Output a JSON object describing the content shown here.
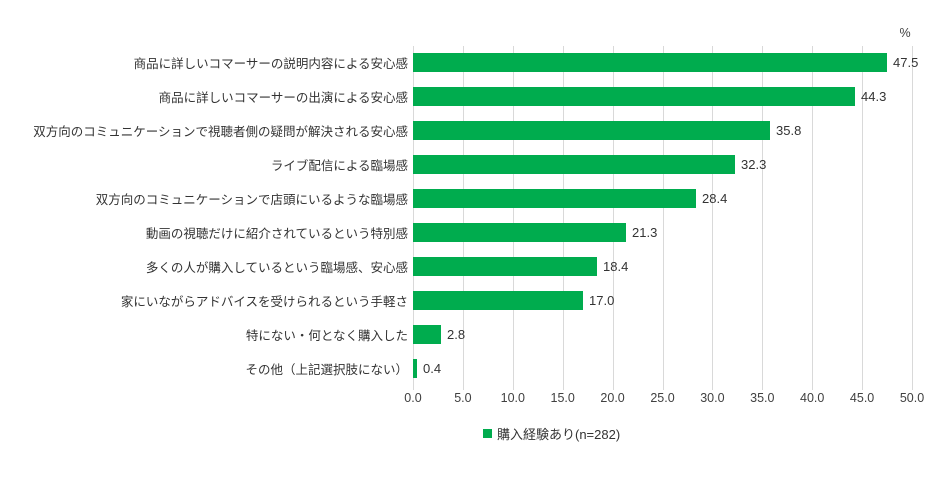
{
  "chart_data": {
    "type": "bar",
    "orientation": "horizontal",
    "title": "",
    "unit_label": "%",
    "categories": [
      "商品に詳しいコマーサーの説明内容による安心感",
      "商品に詳しいコマーサーの出演による安心感",
      "双方向のコミュニケーションで視聴者側の疑問が解決される安心感",
      "ライブ配信による臨場感",
      "双方向のコミュニケーションで店頭にいるような臨場感",
      "動画の視聴だけに紹介されているという特別感",
      "多くの人が購入しているという臨場感、安心感",
      "家にいながらアドバイスを受けられるという手軽さ",
      "特にない・何となく購入した",
      "その他（上記選択肢にない）"
    ],
    "series": [
      {
        "name": "購入経験あり(n=282)",
        "values": [
          47.5,
          44.3,
          35.8,
          32.3,
          28.4,
          21.3,
          18.4,
          17.0,
          2.8,
          0.4
        ]
      }
    ],
    "xlim": [
      0,
      50
    ],
    "xticks": [
      0,
      5,
      10,
      15,
      20,
      25,
      30,
      35,
      40,
      45,
      50
    ],
    "xtick_labels": [
      "0.0",
      "5.0",
      "10.0",
      "15.0",
      "20.0",
      "25.0",
      "30.0",
      "35.0",
      "40.0",
      "45.0",
      "50.0"
    ],
    "grid": true,
    "legend_position": "bottom-center",
    "colors": {
      "bar": "#00ac4e",
      "gridline": "#d9d9d9",
      "category_text": "#333333",
      "axis_text": "#404040"
    }
  },
  "legend": {
    "label": "購入経験あり(n=282)"
  },
  "axis": {
    "unit": "%"
  }
}
